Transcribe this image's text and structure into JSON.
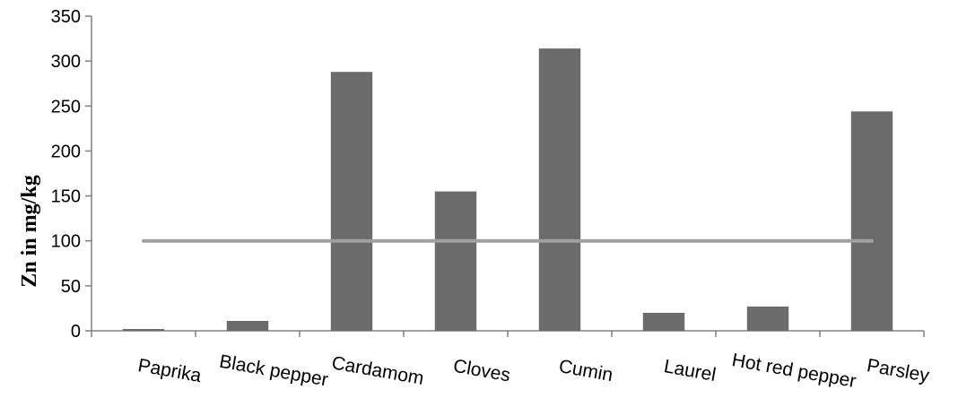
{
  "chart_data": {
    "type": "bar",
    "title": "",
    "xlabel": "",
    "ylabel": "Zn in mg/kg",
    "ylim": [
      0,
      350
    ],
    "yticks": [
      0,
      50,
      100,
      150,
      200,
      250,
      300,
      350
    ],
    "grid": false,
    "categories": [
      "Paprika",
      "Black pepper",
      "Cardamom",
      "Cloves",
      "Cumin",
      "Laurel",
      "Hot red pepper",
      "Parsley"
    ],
    "series": [
      {
        "values": [
          2,
          11,
          288,
          155,
          314,
          20,
          27,
          244
        ],
        "color": "#6b6b6b"
      }
    ],
    "reference_line": {
      "value": 100,
      "color": "#a0a0a0"
    },
    "axis_color": "#808080"
  }
}
